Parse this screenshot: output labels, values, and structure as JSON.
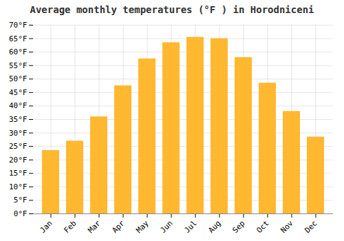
{
  "chart_data": {
    "type": "bar",
    "title": "Average monthly temperatures (°F ) in Horodniceni",
    "categories": [
      "Jan",
      "Feb",
      "Mar",
      "Apr",
      "May",
      "Jun",
      "Jul",
      "Aug",
      "Sep",
      "Oct",
      "Nov",
      "Dec"
    ],
    "values": [
      23.5,
      27.0,
      36.0,
      47.5,
      57.5,
      63.5,
      65.5,
      65.0,
      58.0,
      48.5,
      38.0,
      28.5
    ],
    "color": "#FFB830",
    "ylim": [
      0,
      70
    ],
    "yticks": [
      {
        "value": 0,
        "label": "0°F"
      },
      {
        "value": 5,
        "label": "5°F"
      },
      {
        "value": 10,
        "label": "10°F"
      },
      {
        "value": 15,
        "label": "15°F"
      },
      {
        "value": 20,
        "label": "20°F"
      },
      {
        "value": 25,
        "label": "25°F"
      },
      {
        "value": 30,
        "label": "30°F"
      },
      {
        "value": 35,
        "label": "35°F"
      },
      {
        "value": 40,
        "label": "40°F"
      },
      {
        "value": 45,
        "label": "45°F"
      },
      {
        "value": 50,
        "label": "50°F"
      },
      {
        "value": 55,
        "label": "55°F"
      },
      {
        "value": 60,
        "label": "60°F"
      },
      {
        "value": 65,
        "label": "65°F"
      },
      {
        "value": 70,
        "label": "70°F"
      }
    ],
    "grid": true
  }
}
